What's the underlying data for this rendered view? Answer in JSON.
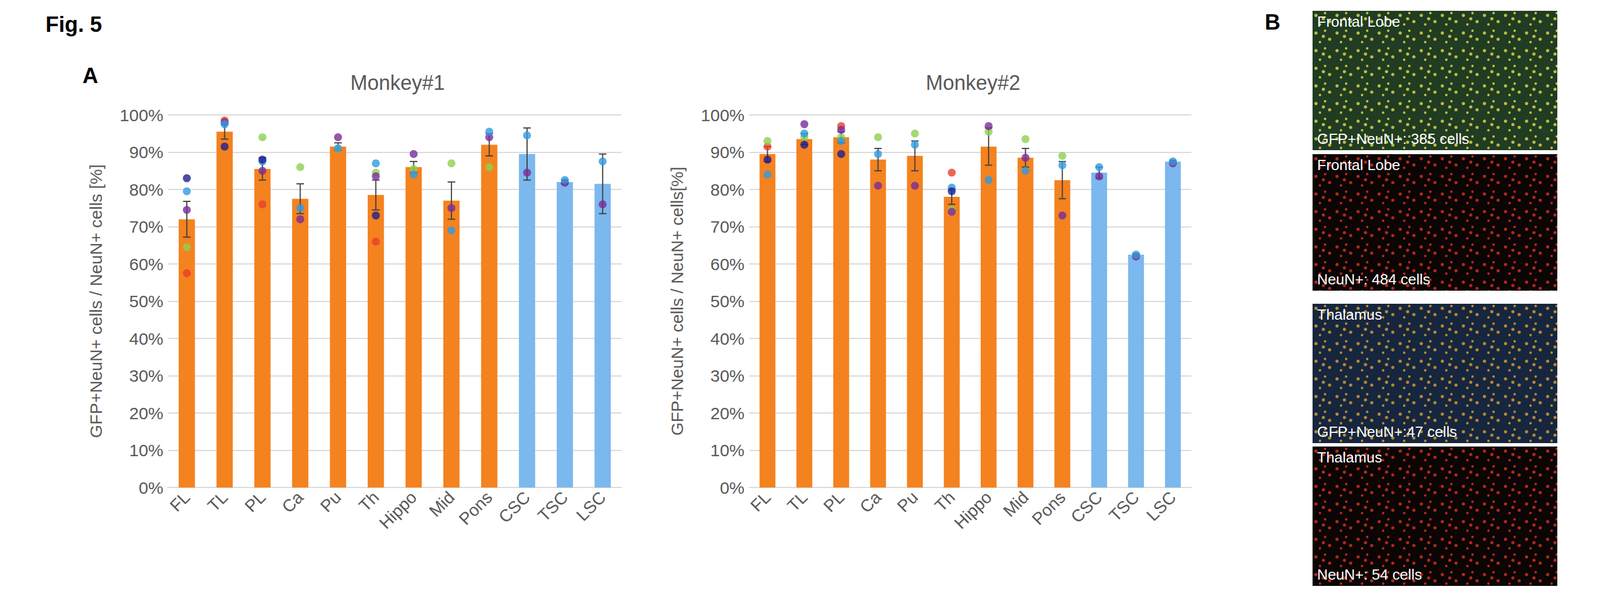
{
  "figure_title": "Fig. 5",
  "panel_labels": [
    "A",
    "B"
  ],
  "chart_data": [
    {
      "type": "bar",
      "title": "Monkey#1",
      "y_label": "GFP+NeuN+ cells / NeuN+ cells [%]",
      "categories": [
        "FL",
        "TL",
        "PL",
        "Ca",
        "Pu",
        "Th",
        "Hippo",
        "Mid",
        "Pons",
        "CSC",
        "TSC",
        "LSC"
      ],
      "values": [
        72,
        95.5,
        85.5,
        77.5,
        91.5,
        78.5,
        86,
        77,
        92,
        89.5,
        82,
        81.5
      ],
      "errors": [
        4.8,
        2,
        3,
        4,
        1,
        4,
        1.5,
        5,
        3,
        7,
        0.5,
        8
      ],
      "colors": [
        "#f4821f",
        "#f4821f",
        "#f4821f",
        "#f4821f",
        "#f4821f",
        "#f4821f",
        "#f4821f",
        "#f4821f",
        "#f4821f",
        "#7bb8ee",
        "#7bb8ee",
        "#7bb8ee"
      ],
      "samples": [
        {
          "color": "#e8402a",
          "values": [
            57.5,
            98.5,
            76,
            null,
            null,
            66,
            null,
            null,
            null,
            null,
            null,
            null
          ]
        },
        {
          "color": "#8fd14f",
          "values": [
            64.5,
            null,
            94,
            86,
            91,
            84.5,
            85.5,
            87,
            86,
            null,
            null,
            null
          ]
        },
        {
          "color": "#7a2c9a",
          "values": [
            74.5,
            98,
            85,
            72,
            94,
            83.5,
            89.5,
            75,
            94,
            84.5,
            81.8,
            76
          ]
        },
        {
          "color": "#2f9be0",
          "values": [
            79.5,
            97.5,
            87.5,
            75,
            91,
            87,
            84,
            69,
            95.5,
            94.5,
            82.5,
            87.5
          ]
        },
        {
          "color": "#1f1f8f",
          "values": [
            83,
            91.5,
            88,
            null,
            null,
            73,
            null,
            null,
            null,
            null,
            null,
            null
          ]
        }
      ],
      "ylim": [
        0,
        100
      ],
      "yticks": [
        {
          "value": 0,
          "label": "0%"
        },
        {
          "value": 10,
          "label": "10%"
        },
        {
          "value": 20,
          "label": "20%"
        },
        {
          "value": 30,
          "label": "30%"
        },
        {
          "value": 40,
          "label": "40%"
        },
        {
          "value": 50,
          "label": "50%"
        },
        {
          "value": 60,
          "label": "60%"
        },
        {
          "value": 70,
          "label": "70%"
        },
        {
          "value": 80,
          "label": "80%"
        },
        {
          "value": 90,
          "label": "90%"
        },
        {
          "value": 100,
          "label": "100%"
        }
      ],
      "grid": true,
      "data_labels": false
    },
    {
      "type": "bar",
      "title": "Monkey#2",
      "y_label": "GFP+NeuN+ cells / NeuN+ cells[%]",
      "categories": [
        "FL",
        "TL",
        "PL",
        "Ca",
        "Pu",
        "Th",
        "Hippo",
        "Mid",
        "Pons",
        "CSC",
        "TSC",
        "LSC"
      ],
      "values": [
        89.5,
        93.5,
        94,
        88,
        89,
        78,
        91.5,
        88.5,
        82.5,
        84.5,
        62.5,
        87.5
      ],
      "errors": [
        2,
        1.5,
        1.5,
        3,
        4,
        2,
        5,
        2.5,
        5,
        1.5,
        0.3,
        0.3
      ],
      "colors": [
        "#f4821f",
        "#f4821f",
        "#f4821f",
        "#f4821f",
        "#f4821f",
        "#f4821f",
        "#f4821f",
        "#f4821f",
        "#f4821f",
        "#7bb8ee",
        "#7bb8ee",
        "#7bb8ee"
      ],
      "samples": [
        {
          "color": "#e8402a",
          "values": [
            91.5,
            null,
            97,
            null,
            null,
            84.5,
            null,
            null,
            null,
            null,
            null,
            null
          ]
        },
        {
          "color": "#8fd14f",
          "values": [
            93,
            94,
            94,
            94,
            95,
            74.5,
            95.5,
            93.5,
            89,
            null,
            null,
            null
          ]
        },
        {
          "color": "#7a2c9a",
          "values": [
            null,
            97.5,
            96,
            81,
            81,
            74,
            97,
            88.5,
            73,
            83.5,
            62,
            87
          ]
        },
        {
          "color": "#2f9be0",
          "values": [
            84,
            95,
            93,
            89.5,
            92,
            80.5,
            82.5,
            85,
            86.5,
            86,
            62.5,
            87.5
          ]
        },
        {
          "color": "#1f1f8f",
          "values": [
            88,
            92,
            89.5,
            null,
            null,
            79.5,
            null,
            null,
            null,
            null,
            null,
            null
          ]
        }
      ],
      "ylim": [
        0,
        100
      ],
      "yticks": [
        {
          "value": 0,
          "label": "0%"
        },
        {
          "value": 10,
          "label": "10%"
        },
        {
          "value": 20,
          "label": "20%"
        },
        {
          "value": 30,
          "label": "30%"
        },
        {
          "value": 40,
          "label": "40%"
        },
        {
          "value": 50,
          "label": "50%"
        },
        {
          "value": 60,
          "label": "60%"
        },
        {
          "value": 70,
          "label": "70%"
        },
        {
          "value": 80,
          "label": "80%"
        },
        {
          "value": 90,
          "label": "90%"
        },
        {
          "value": 100,
          "label": "100%"
        }
      ],
      "grid": true,
      "data_labels": false
    }
  ],
  "images": [
    {
      "title": "Frontal Lobe",
      "caption": "GFP+NeuN+: 385 cells",
      "color": "#203c22",
      "dot_color": "#e6dc4a"
    },
    {
      "title": "Frontal Lobe",
      "caption": "NeuN+: 484 cells",
      "color": "#0b0505",
      "dot_color": "#e0301e"
    },
    {
      "title": "Thalamus",
      "caption": "GFP+NeuN+:47 cells",
      "color": "#16263e",
      "dot_color": "#e0a030"
    },
    {
      "title": "Thalamus",
      "caption": "NeuN+: 54 cells",
      "color": "#0b0505",
      "dot_color": "#e0301e"
    }
  ]
}
